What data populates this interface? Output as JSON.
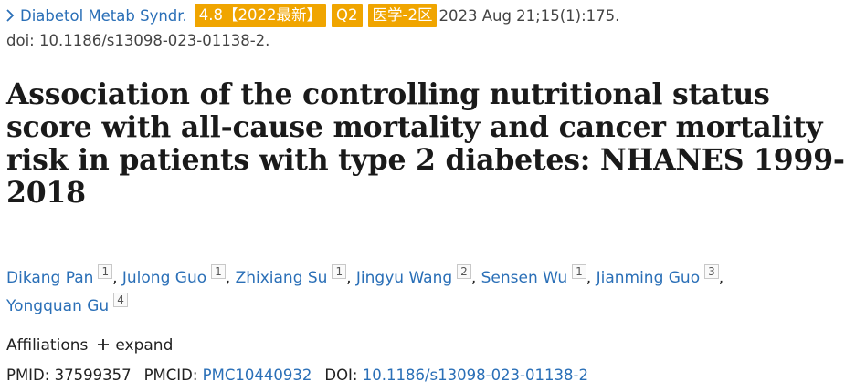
{
  "header": {
    "chevron_icon": "chevron-right-icon",
    "journal": "Diabetol Metab Syndr.",
    "badges": [
      "4.8【2022最新】",
      "Q2",
      "医学-2区"
    ],
    "badge_color": "#f0a500",
    "citation": "2023 Aug 21;15(1):175.",
    "doi_line": "doi: 10.1186/s13098-023-01138-2."
  },
  "title": {
    "lines": [
      "Association of the controlling nutritional status",
      "score with all-cause mortality and cancer mortality",
      "risk in patients with type 2 diabetes: NHANES 1999-",
      "2018"
    ]
  },
  "authors": [
    {
      "name": "Dikang Pan",
      "aff": "1"
    },
    {
      "name": "Julong Guo",
      "aff": "1"
    },
    {
      "name": "Zhixiang Su",
      "aff": "1"
    },
    {
      "name": "Jingyu Wang",
      "aff": "2"
    },
    {
      "name": "Sensen Wu",
      "aff": "1"
    },
    {
      "name": "Jianming Guo",
      "aff": "3"
    },
    {
      "name": "Yongquan Gu",
      "aff": "4"
    }
  ],
  "affiliations": {
    "label": "Affiliations",
    "expand_icon": "plus-icon",
    "expand_label": "expand"
  },
  "ids": {
    "pmid_label": "PMID:",
    "pmid": "37599357",
    "pmcid_label": "PMCID:",
    "pmcid": "PMC10440932",
    "doi_label": "DOI:",
    "doi": "10.1186/s13098-023-01138-2"
  },
  "colors": {
    "link": "#2a6fb7",
    "text": "#212121"
  }
}
